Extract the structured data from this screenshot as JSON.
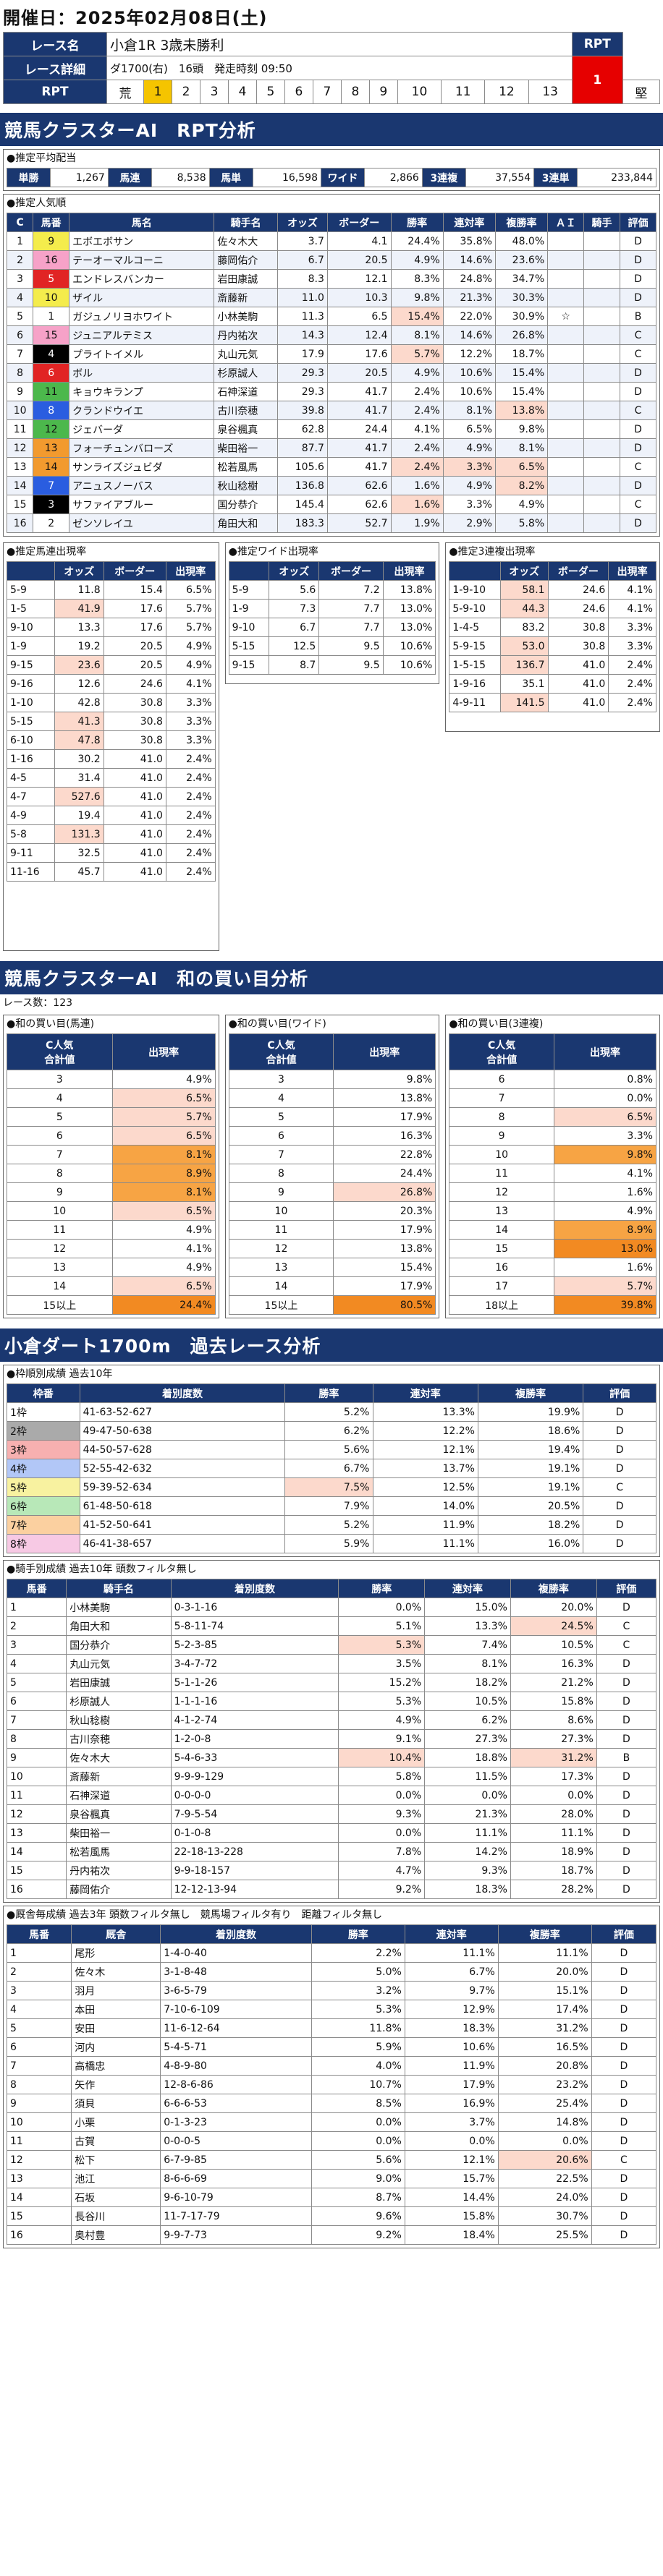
{
  "title": "開催日：2025年02月08日(土)",
  "race": {
    "name_label": "レース名",
    "name": "小倉1R 3歳未勝利",
    "detail_label": "レース詳細",
    "detail": "ダ1700(右)　16頭　発走時刻 09:50",
    "rpt_label": "RPT",
    "rpt_value": "1",
    "rpt_row_label": "RPT",
    "scale": [
      "荒",
      "1",
      "2",
      "3",
      "4",
      "5",
      "6",
      "7",
      "8",
      "9",
      "10",
      "11",
      "12",
      "13",
      "堅"
    ]
  },
  "sec1": "競馬クラスターAI　RPT分析",
  "payout": {
    "title": "●推定平均配当",
    "items": [
      [
        "単勝",
        "1,267"
      ],
      [
        "馬連",
        "8,538"
      ],
      [
        "馬単",
        "16,598"
      ],
      [
        "ワイド",
        "2,866"
      ],
      [
        "3連複",
        "37,554"
      ],
      [
        "3連単",
        "233,844"
      ]
    ]
  },
  "pop": {
    "title": "●推定人気順",
    "headers": [
      "C",
      "馬番",
      "馬名",
      "騎手名",
      "オッズ",
      "ボーダー",
      "勝率",
      "連対率",
      "複勝率",
      "ＡＩ",
      "騎手",
      "評価"
    ],
    "rows": [
      [
        "1",
        "9",
        "エボエボサン",
        "佐々木大",
        "3.7",
        "4.1",
        "24.4%",
        "35.8%",
        "48.0%",
        "",
        "",
        "D"
      ],
      [
        "2",
        "16",
        "テーオーマルコーニ",
        "藤岡佑介",
        "6.7",
        "20.5",
        "4.9%",
        "14.6%",
        "23.6%",
        "",
        "",
        "D"
      ],
      [
        "3",
        "5",
        "エンドレスバンカー",
        "岩田康誠",
        "8.3",
        "12.1",
        "8.3%",
        "24.8%",
        "34.7%",
        "",
        "",
        "D"
      ],
      [
        "4",
        "10",
        "ザイル",
        "斎藤新",
        "11.0",
        "10.3",
        "9.8%",
        "21.3%",
        "30.3%",
        "",
        "",
        "D"
      ],
      [
        "5",
        "1",
        "ガジュノリヨホワイト",
        "小林美駒",
        "11.3",
        "6.5",
        "15.4%",
        "22.0%",
        "30.9%",
        "☆",
        "",
        "B"
      ],
      [
        "6",
        "15",
        "ジュニアルテミス",
        "丹内祐次",
        "14.3",
        "12.4",
        "8.1%",
        "14.6%",
        "26.8%",
        "",
        "",
        "C"
      ],
      [
        "7",
        "4",
        "プライトイメル",
        "丸山元気",
        "17.9",
        "17.6",
        "5.7%",
        "12.2%",
        "18.7%",
        "",
        "",
        "C"
      ],
      [
        "8",
        "6",
        "ボル",
        "杉原誠人",
        "29.3",
        "20.5",
        "4.9%",
        "10.6%",
        "15.4%",
        "",
        "",
        "D"
      ],
      [
        "9",
        "11",
        "キョウキランプ",
        "石神深道",
        "29.3",
        "41.7",
        "2.4%",
        "10.6%",
        "15.4%",
        "",
        "",
        "D"
      ],
      [
        "10",
        "8",
        "クランドウイエ",
        "古川奈穂",
        "39.8",
        "41.7",
        "2.4%",
        "8.1%",
        "13.8%",
        "",
        "",
        "C"
      ],
      [
        "11",
        "12",
        "ジェバーダ",
        "泉谷楓真",
        "62.8",
        "24.4",
        "4.1%",
        "6.5%",
        "9.8%",
        "",
        "",
        "D"
      ],
      [
        "12",
        "13",
        "フォーチュンバローズ",
        "柴田裕一",
        "87.7",
        "41.7",
        "2.4%",
        "4.9%",
        "8.1%",
        "",
        "",
        "D"
      ],
      [
        "13",
        "14",
        "サンライズジュビダ",
        "松若風馬",
        "105.6",
        "41.7",
        "2.4%",
        "3.3%",
        "6.5%",
        "",
        "",
        "C"
      ],
      [
        "14",
        "7",
        "アニュスノーバス",
        "秋山稔樹",
        "136.8",
        "62.6",
        "1.6%",
        "4.9%",
        "8.2%",
        "",
        "",
        "D"
      ],
      [
        "15",
        "3",
        "サファイアブルー",
        "国分恭介",
        "145.4",
        "62.6",
        "1.6%",
        "3.3%",
        "4.9%",
        "",
        "",
        "C"
      ],
      [
        "16",
        "2",
        "ゼンソレイユ",
        "角田大和",
        "183.3",
        "52.7",
        "1.9%",
        "2.9%",
        "5.8%",
        "",
        "",
        "D"
      ]
    ]
  },
  "est1": {
    "title": "●推定馬連出現率",
    "headers": [
      "",
      "オッズ",
      "ボーダー",
      "出現率"
    ],
    "rows": [
      [
        "5-9",
        "11.8",
        "15.4",
        "6.5%"
      ],
      [
        "1-5",
        "41.9",
        "17.6",
        "5.7%"
      ],
      [
        "9-10",
        "13.3",
        "17.6",
        "5.7%"
      ],
      [
        "1-9",
        "19.2",
        "20.5",
        "4.9%"
      ],
      [
        "9-15",
        "23.6",
        "20.5",
        "4.9%"
      ],
      [
        "9-16",
        "12.6",
        "24.6",
        "4.1%"
      ],
      [
        "1-10",
        "42.8",
        "30.8",
        "3.3%"
      ],
      [
        "5-15",
        "41.3",
        "30.8",
        "3.3%"
      ],
      [
        "6-10",
        "47.8",
        "30.8",
        "3.3%"
      ],
      [
        "1-16",
        "30.2",
        "41.0",
        "2.4%"
      ],
      [
        "4-5",
        "31.4",
        "41.0",
        "2.4%"
      ],
      [
        "4-7",
        "527.6",
        "41.0",
        "2.4%"
      ],
      [
        "4-9",
        "19.4",
        "41.0",
        "2.4%"
      ],
      [
        "5-8",
        "131.3",
        "41.0",
        "2.4%"
      ],
      [
        "9-11",
        "32.5",
        "41.0",
        "2.4%"
      ],
      [
        "11-16",
        "45.7",
        "41.0",
        "2.4%"
      ]
    ]
  },
  "est2": {
    "title": "●推定ワイド出現率",
    "headers": [
      "",
      "オッズ",
      "ボーダー",
      "出現率"
    ],
    "rows": [
      [
        "5-9",
        "5.6",
        "7.2",
        "13.8%"
      ],
      [
        "1-9",
        "7.3",
        "7.7",
        "13.0%"
      ],
      [
        "9-10",
        "6.7",
        "7.7",
        "13.0%"
      ],
      [
        "5-15",
        "12.5",
        "9.5",
        "10.6%"
      ],
      [
        "9-15",
        "8.7",
        "9.5",
        "10.6%"
      ]
    ]
  },
  "est3": {
    "title": "●推定3連複出現率",
    "headers": [
      "",
      "オッズ",
      "ボーダー",
      "出現率"
    ],
    "rows": [
      [
        "1-9-10",
        "58.1",
        "24.6",
        "4.1%"
      ],
      [
        "5-9-10",
        "44.3",
        "24.6",
        "4.1%"
      ],
      [
        "1-4-5",
        "83.2",
        "30.8",
        "3.3%"
      ],
      [
        "5-9-15",
        "53.0",
        "30.8",
        "3.3%"
      ],
      [
        "1-5-15",
        "136.7",
        "41.0",
        "2.4%"
      ],
      [
        "1-9-16",
        "35.1",
        "41.0",
        "2.4%"
      ],
      [
        "4-9-11",
        "141.5",
        "41.0",
        "2.4%"
      ]
    ]
  },
  "sec2": "競馬クラスターAI　和の買い目分析",
  "race_count": "レース数：123",
  "sum1": {
    "title": "●和の買い目(馬連)",
    "h1": "C人気",
    "h2": "合計値",
    "h3": "出現率",
    "rows": [
      [
        "3",
        "4.9%"
      ],
      [
        "4",
        "6.5%"
      ],
      [
        "5",
        "5.7%"
      ],
      [
        "6",
        "6.5%"
      ],
      [
        "7",
        "8.1%"
      ],
      [
        "8",
        "8.9%"
      ],
      [
        "9",
        "8.1%"
      ],
      [
        "10",
        "6.5%"
      ],
      [
        "11",
        "4.9%"
      ],
      [
        "12",
        "4.1%"
      ],
      [
        "13",
        "4.9%"
      ],
      [
        "14",
        "6.5%"
      ],
      [
        "15以上",
        "24.4%"
      ]
    ]
  },
  "sum2": {
    "title": "●和の買い目(ワイド)",
    "h1": "C人気",
    "h2": "合計値",
    "h3": "出現率",
    "rows": [
      [
        "3",
        "9.8%"
      ],
      [
        "4",
        "13.8%"
      ],
      [
        "5",
        "17.9%"
      ],
      [
        "6",
        "16.3%"
      ],
      [
        "7",
        "22.8%"
      ],
      [
        "8",
        "24.4%"
      ],
      [
        "9",
        "26.8%"
      ],
      [
        "10",
        "20.3%"
      ],
      [
        "11",
        "17.9%"
      ],
      [
        "12",
        "13.8%"
      ],
      [
        "13",
        "15.4%"
      ],
      [
        "14",
        "17.9%"
      ],
      [
        "15以上",
        "80.5%"
      ]
    ]
  },
  "sum3": {
    "title": "●和の買い目(3連複)",
    "h1": "C人気",
    "h2": "合計値",
    "h3": "出現率",
    "rows": [
      [
        "6",
        "0.8%"
      ],
      [
        "7",
        "0.0%"
      ],
      [
        "8",
        "6.5%"
      ],
      [
        "9",
        "3.3%"
      ],
      [
        "10",
        "9.8%"
      ],
      [
        "11",
        "4.1%"
      ],
      [
        "12",
        "1.6%"
      ],
      [
        "13",
        "4.9%"
      ],
      [
        "14",
        "8.9%"
      ],
      [
        "15",
        "13.0%"
      ],
      [
        "16",
        "1.6%"
      ],
      [
        "17",
        "5.7%"
      ],
      [
        "18以上",
        "39.8%"
      ]
    ]
  },
  "sec3": "小倉ダート1700m　過去レース分析",
  "frame": {
    "title": "●枠順別成績 過去10年",
    "headers": [
      "枠番",
      "着別度数",
      "勝率",
      "連対率",
      "複勝率",
      "評価"
    ],
    "rows": [
      [
        "1枠",
        "41-63-52-627",
        "5.2%",
        "13.3%",
        "19.9%",
        "D"
      ],
      [
        "2枠",
        "49-47-50-638",
        "6.2%",
        "12.2%",
        "18.6%",
        "D"
      ],
      [
        "3枠",
        "44-50-57-628",
        "5.6%",
        "12.1%",
        "19.4%",
        "D"
      ],
      [
        "4枠",
        "52-55-42-632",
        "6.7%",
        "13.7%",
        "19.1%",
        "D"
      ],
      [
        "5枠",
        "59-39-52-634",
        "7.5%",
        "12.5%",
        "19.1%",
        "C"
      ],
      [
        "6枠",
        "61-48-50-618",
        "7.9%",
        "14.0%",
        "20.5%",
        "D"
      ],
      [
        "7枠",
        "41-52-50-641",
        "5.2%",
        "11.9%",
        "18.2%",
        "D"
      ],
      [
        "8枠",
        "46-41-38-657",
        "5.9%",
        "11.1%",
        "16.0%",
        "D"
      ]
    ]
  },
  "jockey": {
    "title": "●騎手別成績 過去10年 頭数フィルタ無し",
    "headers": [
      "馬番",
      "騎手名",
      "着別度数",
      "勝率",
      "連対率",
      "複勝率",
      "評価"
    ],
    "rows": [
      [
        "1",
        "小林美駒",
        "0-3-1-16",
        "0.0%",
        "15.0%",
        "20.0%",
        "D"
      ],
      [
        "2",
        "角田大和",
        "5-8-11-74",
        "5.1%",
        "13.3%",
        "24.5%",
        "C"
      ],
      [
        "3",
        "国分恭介",
        "5-2-3-85",
        "5.3%",
        "7.4%",
        "10.5%",
        "C"
      ],
      [
        "4",
        "丸山元気",
        "3-4-7-72",
        "3.5%",
        "8.1%",
        "16.3%",
        "D"
      ],
      [
        "5",
        "岩田康誠",
        "5-1-1-26",
        "15.2%",
        "18.2%",
        "21.2%",
        "D"
      ],
      [
        "6",
        "杉原誠人",
        "1-1-1-16",
        "5.3%",
        "10.5%",
        "15.8%",
        "D"
      ],
      [
        "7",
        "秋山稔樹",
        "4-1-2-74",
        "4.9%",
        "6.2%",
        "8.6%",
        "D"
      ],
      [
        "8",
        "古川奈穂",
        "1-2-0-8",
        "9.1%",
        "27.3%",
        "27.3%",
        "D"
      ],
      [
        "9",
        "佐々木大",
        "5-4-6-33",
        "10.4%",
        "18.8%",
        "31.2%",
        "B"
      ],
      [
        "10",
        "斎藤新",
        "9-9-9-129",
        "5.8%",
        "11.5%",
        "17.3%",
        "D"
      ],
      [
        "11",
        "石神深道",
        "0-0-0-0",
        "0.0%",
        "0.0%",
        "0.0%",
        "D"
      ],
      [
        "12",
        "泉谷楓真",
        "7-9-5-54",
        "9.3%",
        "21.3%",
        "28.0%",
        "D"
      ],
      [
        "13",
        "柴田裕一",
        "0-1-0-8",
        "0.0%",
        "11.1%",
        "11.1%",
        "D"
      ],
      [
        "14",
        "松若風馬",
        "22-18-13-228",
        "7.8%",
        "14.2%",
        "18.9%",
        "D"
      ],
      [
        "15",
        "丹内祐次",
        "9-9-18-157",
        "4.7%",
        "9.3%",
        "18.7%",
        "D"
      ],
      [
        "16",
        "藤岡佑介",
        "12-12-13-94",
        "9.2%",
        "18.3%",
        "28.2%",
        "D"
      ]
    ]
  },
  "stable": {
    "title": "●厩舎毎成績 過去3年 頭数フィルタ無し　競馬場フィルタ有り　距離フィルタ無し",
    "headers": [
      "馬番",
      "厩舎",
      "着別度数",
      "勝率",
      "連対率",
      "複勝率",
      "評価"
    ],
    "rows": [
      [
        "1",
        "尾形",
        "1-4-0-40",
        "2.2%",
        "11.1%",
        "11.1%",
        "D"
      ],
      [
        "2",
        "佐々木",
        "3-1-8-48",
        "5.0%",
        "6.7%",
        "20.0%",
        "D"
      ],
      [
        "3",
        "羽月",
        "3-6-5-79",
        "3.2%",
        "9.7%",
        "15.1%",
        "D"
      ],
      [
        "4",
        "本田",
        "7-10-6-109",
        "5.3%",
        "12.9%",
        "17.4%",
        "D"
      ],
      [
        "5",
        "安田",
        "11-6-12-64",
        "11.8%",
        "18.3%",
        "31.2%",
        "D"
      ],
      [
        "6",
        "河内",
        "5-4-5-71",
        "5.9%",
        "10.6%",
        "16.5%",
        "D"
      ],
      [
        "7",
        "高橋忠",
        "4-8-9-80",
        "4.0%",
        "11.9%",
        "20.8%",
        "D"
      ],
      [
        "8",
        "矢作",
        "12-8-6-86",
        "10.7%",
        "17.9%",
        "23.2%",
        "D"
      ],
      [
        "9",
        "須貝",
        "6-6-6-53",
        "8.5%",
        "16.9%",
        "25.4%",
        "D"
      ],
      [
        "10",
        "小栗",
        "0-1-3-23",
        "0.0%",
        "3.7%",
        "14.8%",
        "D"
      ],
      [
        "11",
        "古賀",
        "0-0-0-5",
        "0.0%",
        "0.0%",
        "0.0%",
        "D"
      ],
      [
        "12",
        "松下",
        "6-7-9-85",
        "5.6%",
        "12.1%",
        "20.6%",
        "C"
      ],
      [
        "13",
        "池江",
        "8-6-6-69",
        "9.0%",
        "15.7%",
        "22.5%",
        "D"
      ],
      [
        "14",
        "石坂",
        "9-6-10-79",
        "8.7%",
        "14.4%",
        "24.0%",
        "D"
      ],
      [
        "15",
        "長谷川",
        "11-7-17-79",
        "9.6%",
        "15.8%",
        "30.7%",
        "D"
      ],
      [
        "16",
        "奥村豊",
        "9-9-7-73",
        "9.2%",
        "18.4%",
        "25.5%",
        "D"
      ]
    ]
  }
}
